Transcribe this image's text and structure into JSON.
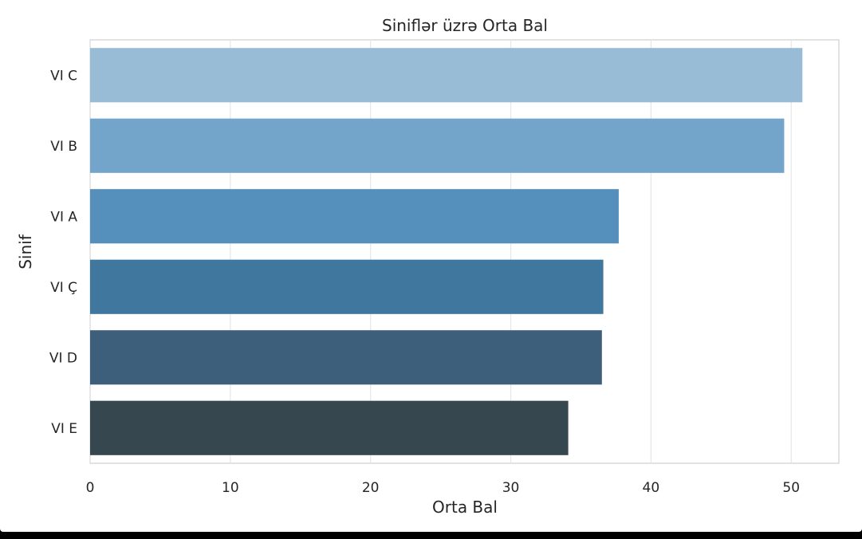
{
  "chart_data": {
    "type": "bar",
    "orientation": "horizontal",
    "title": "Siniflər üzrə Orta Bal",
    "xlabel": "Orta Bal",
    "ylabel": "Sinif",
    "categories": [
      "VI C",
      "VI B",
      "VI A",
      "VI Ç",
      "VI D",
      "VI E"
    ],
    "values": [
      50.8,
      49.5,
      37.7,
      36.6,
      36.5,
      34.1
    ],
    "xlim": [
      0,
      53.4
    ],
    "xticks": [
      "0",
      "10",
      "20",
      "30",
      "40",
      "50"
    ],
    "xtick_values": [
      0,
      10,
      20,
      30,
      40,
      50
    ],
    "grid": true,
    "colors": [
      "#98bcd6",
      "#73a4c9",
      "#558fbb",
      "#40779e",
      "#3e5f7b",
      "#37474f"
    ]
  }
}
